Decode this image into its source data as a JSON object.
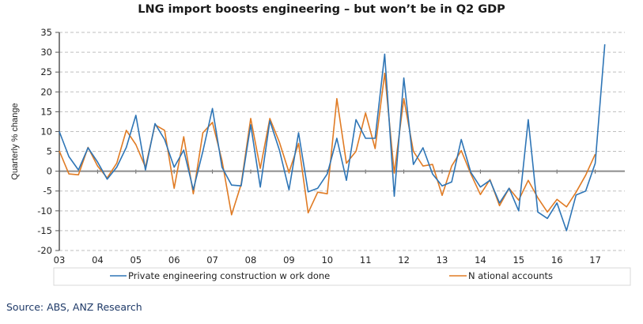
{
  "chart_data": {
    "type": "line",
    "title": "LNG import boosts engineering – but won’t be in Q2 GDP",
    "xlabel": "",
    "ylabel": "Quarterly % change",
    "ylim": [
      -20,
      35
    ],
    "yticks": [
      35,
      30,
      25,
      20,
      15,
      10,
      5,
      0,
      -5,
      -10,
      -15,
      -20
    ],
    "grid": true,
    "x_tick_labels": [
      "03",
      "04",
      "05",
      "06",
      "07",
      "08",
      "09",
      "10",
      "11",
      "12",
      "13",
      "14",
      "15",
      "16",
      "17"
    ],
    "quarters_per_label": 4,
    "legend_position": "bottom",
    "series": [
      {
        "name": "Private engineering construction w ork done",
        "color": "#2e75b6",
        "values": [
          10,
          3.7,
          0.3,
          5.9,
          2.3,
          -2,
          1,
          6,
          14.1,
          0.3,
          12,
          8,
          1,
          5.3,
          -4.7,
          5,
          15.8,
          1,
          -3.5,
          -3.7,
          11.7,
          -4,
          12.7,
          5.3,
          -4.7,
          9.7,
          -5.2,
          -4.3,
          -0.7,
          8.3,
          -2.3,
          13,
          8.3,
          8.3,
          29.5,
          -6.3,
          23.5,
          1.7,
          5.9,
          -0.7,
          -3.7,
          -2.7,
          8,
          -0.3,
          -4,
          -2.3,
          -8,
          -4.3,
          -10,
          13,
          -10.3,
          -11.9,
          -8,
          -15,
          -6,
          -5,
          2,
          32
        ]
      },
      {
        "name": "N ational accounts",
        "color": "#e07b24",
        "values": [
          5.1,
          -0.7,
          -0.9,
          6,
          1.3,
          -1.7,
          2,
          10.3,
          6.7,
          1,
          11.7,
          10.3,
          -4.3,
          8.7,
          -5.7,
          9.7,
          12.3,
          2.7,
          -11,
          -3.3,
          13.3,
          0.7,
          13.3,
          7.3,
          -0.3,
          7,
          -10.5,
          -5.3,
          -5.7,
          18.3,
          2,
          5,
          14.7,
          5.7,
          24.7,
          -0.5,
          18.3,
          5,
          1.3,
          1.7,
          -6.1,
          1.3,
          5.2,
          -0.7,
          -5.9,
          -2.1,
          -8.7,
          -4.3,
          -7.3,
          -2.3,
          -6.7,
          -10.3,
          -7.1,
          -9,
          -5.3,
          -1,
          4.3
        ]
      }
    ]
  },
  "source": "Source: ABS, ANZ Research"
}
